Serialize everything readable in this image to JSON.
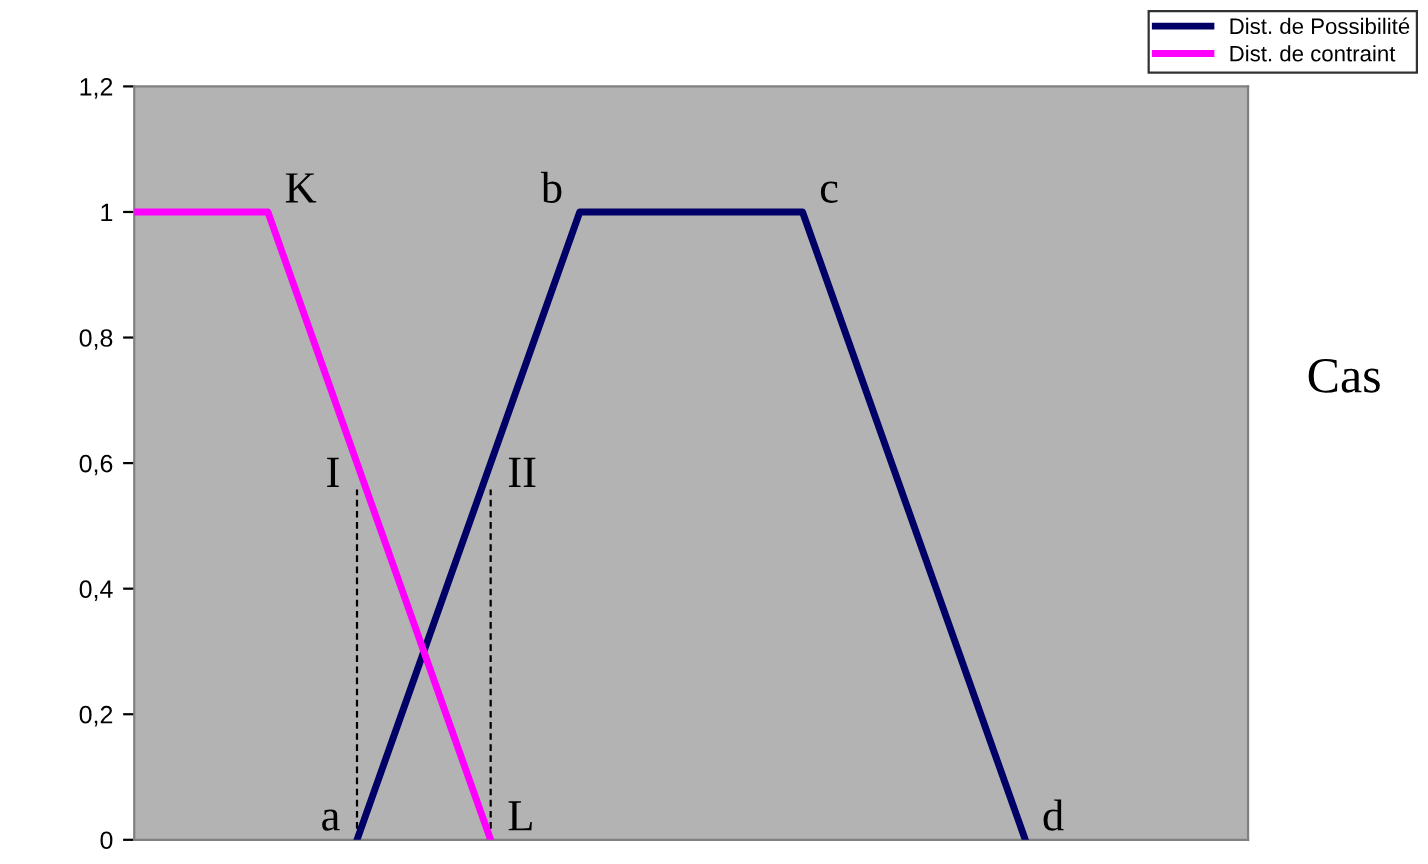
{
  "chart_data": {
    "type": "line",
    "categories": [
      null,
      null,
      null,
      null,
      null,
      null,
      null,
      null,
      null,
      null,
      null,
      null,
      null,
      null,
      null,
      null,
      null,
      null,
      null,
      null,
      null,
      null,
      null,
      null,
      null,
      null
    ],
    "series": [
      {
        "name": "Dist. de Possibilité",
        "color": "#000066",
        "values": [
          null,
          null,
          null,
          null,
          null,
          0,
          0.2,
          0.4,
          0.6,
          0.8,
          1,
          1,
          1,
          1,
          1,
          1,
          0.8,
          0.6,
          0.4,
          0.2,
          0,
          null,
          null,
          null,
          null,
          null
        ],
        "value_labels": [
          null,
          null,
          null,
          null,
          null,
          "a",
          null,
          null,
          "II",
          null,
          "b",
          null,
          null,
          null,
          null,
          "c",
          null,
          null,
          null,
          null,
          "d",
          null,
          null,
          null,
          null,
          null
        ]
      },
      {
        "name": "Dist. de contraint",
        "color": "#ff00ff",
        "values": [
          1,
          1,
          1,
          1,
          0.8,
          0.6,
          0.4,
          0.2,
          0,
          null,
          null,
          null,
          null,
          null,
          null,
          null,
          null,
          null,
          null,
          null,
          null,
          null,
          null,
          null,
          null,
          null
        ],
        "value_labels": [
          null,
          null,
          null,
          "K",
          null,
          "I",
          null,
          null,
          "L",
          null,
          null,
          null,
          null,
          null,
          null,
          null,
          null,
          null,
          null,
          null,
          null,
          null,
          null,
          null,
          null,
          null
        ]
      }
    ],
    "ylim": [
      0,
      1.2
    ],
    "yticks": [
      0,
      {
        "value": 0.2,
        "label": "0,2"
      },
      {
        "value": 0.4,
        "label": "0,4"
      },
      {
        "value": 0.6,
        "label": "0,6"
      },
      {
        "value": 0.8,
        "label": "0,8"
      },
      1,
      {
        "value": 1.2,
        "label": "1,2"
      }
    ],
    "tick_labels": "y",
    "legend": "top right",
    "annotations": [
      "Cas"
    ]
  }
}
